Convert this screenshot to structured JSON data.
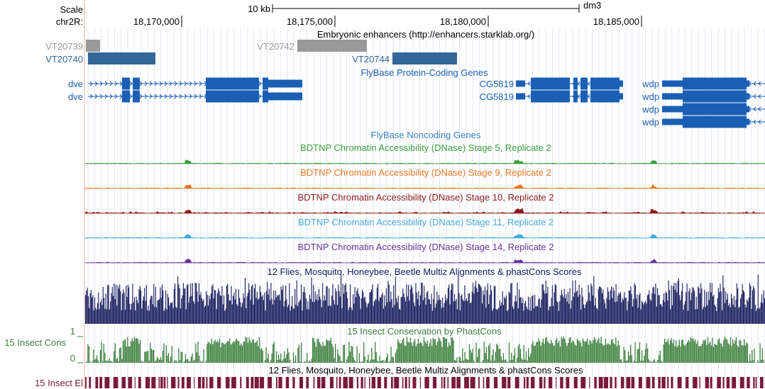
{
  "ruler": {
    "scale_label": "Scale",
    "scale_bar_text": "10 kb",
    "assembly": "dm3",
    "chrom_label": "chr2R:",
    "positions": [
      {
        "value": 18170000,
        "label": "18,170,000"
      },
      {
        "value": 18175000,
        "label": "18,175,000"
      },
      {
        "value": 18180000,
        "label": "18,180,000"
      },
      {
        "value": 18185000,
        "label": "18,185,000"
      }
    ]
  },
  "tracks": {
    "enhancers": {
      "title": "Embryonic enhancers (http://enhancers.starklab.org/)",
      "items": [
        {
          "name": "VT20739",
          "color": "#999999"
        },
        {
          "name": "VT20740",
          "color": "#336699"
        },
        {
          "name": "VT20742",
          "color": "#999999"
        },
        {
          "name": "VT20744",
          "color": "#336699"
        }
      ]
    },
    "genes": {
      "title": "FlyBase Protein-Coding Genes",
      "color": "#1a5fb4",
      "labels": [
        "dve",
        "dve",
        "CG5819",
        "CG5819",
        "wdp",
        "wdp",
        "wdp",
        "wdp"
      ]
    },
    "noncoding": {
      "title": "FlyBase Noncoding Genes",
      "color": "#3a7fc4"
    },
    "dnase": [
      {
        "title": "BDTNP Chromatin Accessibility (DNase) Stage 5, Replicate 2",
        "color": "#3a9f3a"
      },
      {
        "title": "BDTNP Chromatin Accessibility (DNase) Stage 9, Replicate 2",
        "color": "#ee7722"
      },
      {
        "title": "BDTNP Chromatin Accessibility (DNase) Stage 10, Replicate 2",
        "color": "#8b1a1a"
      },
      {
        "title": "BDTNP Chromatin Accessibility (DNase) Stage 11, Replicate 2",
        "color": "#44aadd"
      },
      {
        "title": "BDTNP Chromatin Accessibility (DNase) Stage 14, Replicate 2",
        "color": "#663399"
      }
    ],
    "multiz": {
      "title": "12 Flies, Mosquito, Honeybee, Beetle Multiz Alignments & phastCons Scores",
      "color": "#141a5a"
    },
    "phastcons": {
      "title": "15 Insect Conservation by PhastCons",
      "side_label": "15 Insect Cons",
      "axis_max": "1",
      "axis_min": "0",
      "color": "#3d7f3d"
    },
    "elements": {
      "title": "12 Flies, Mosquito, Honeybee, Beetle Multiz Alignments & phastCons Scores",
      "side_label": "15 Insect El",
      "color": "#7a1a3a"
    }
  }
}
